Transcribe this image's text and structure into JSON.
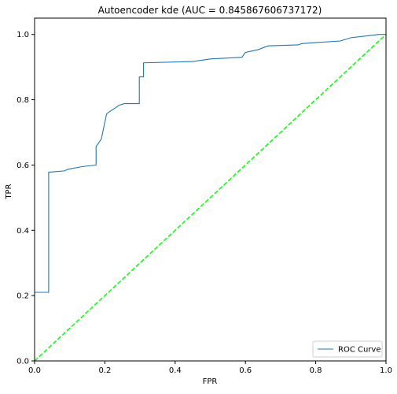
{
  "chart_data": {
    "type": "line",
    "title": "Autoencoder kde (AUC = 0.845867606737172)",
    "xlabel": "FPR",
    "ylabel": "TPR",
    "xlim": [
      0.0,
      1.0
    ],
    "ylim": [
      0.0,
      1.05
    ],
    "xticks": [
      "0.0",
      "0.2",
      "0.4",
      "0.6",
      "0.8",
      "1.0"
    ],
    "yticks": [
      "0.0",
      "0.2",
      "0.4",
      "0.6",
      "0.8",
      "1.0"
    ],
    "grid": false,
    "legend_position": "lower-right",
    "series": [
      {
        "name": "ROC Curve",
        "color": "#1f77b4",
        "line_style": "solid",
        "step": true,
        "points": [
          [
            0.0,
            0.21
          ],
          [
            0.04,
            0.21
          ],
          [
            0.04,
            0.578
          ],
          [
            0.085,
            0.582
          ],
          [
            0.095,
            0.587
          ],
          [
            0.135,
            0.595
          ],
          [
            0.175,
            0.6
          ],
          [
            0.175,
            0.656
          ],
          [
            0.19,
            0.68
          ],
          [
            0.205,
            0.757
          ],
          [
            0.215,
            0.765
          ],
          [
            0.23,
            0.775
          ],
          [
            0.24,
            0.783
          ],
          [
            0.255,
            0.788
          ],
          [
            0.298,
            0.788
          ],
          [
            0.298,
            0.87
          ],
          [
            0.31,
            0.87
          ],
          [
            0.31,
            0.913
          ],
          [
            0.45,
            0.917
          ],
          [
            0.5,
            0.925
          ],
          [
            0.59,
            0.93
          ],
          [
            0.6,
            0.945
          ],
          [
            0.635,
            0.953
          ],
          [
            0.665,
            0.965
          ],
          [
            0.75,
            0.968
          ],
          [
            0.76,
            0.972
          ],
          [
            0.8,
            0.975
          ],
          [
            0.87,
            0.98
          ],
          [
            0.9,
            0.99
          ],
          [
            0.94,
            0.995
          ],
          [
            0.98,
            1.0
          ],
          [
            1.0,
            1.0
          ]
        ]
      },
      {
        "name": "",
        "color": "#00ff00",
        "line_style": "dashed",
        "step": false,
        "points": [
          [
            0.0,
            0.0
          ],
          [
            1.0,
            1.0
          ]
        ]
      }
    ]
  }
}
